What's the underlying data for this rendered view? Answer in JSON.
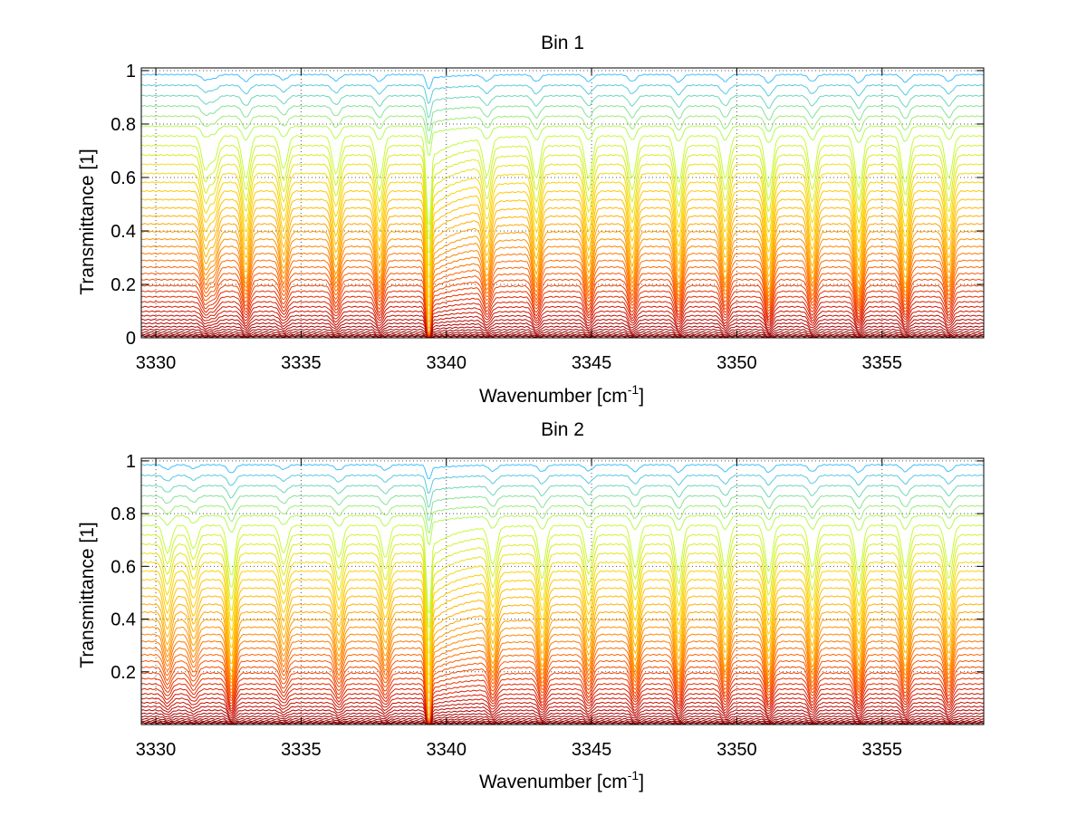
{
  "chart_data": [
    {
      "type": "line",
      "title": "Bin 1",
      "xlabel": "Wavenumber [cm",
      "xlabel_sup": "-1",
      "xlabel_end": "]",
      "ylabel": "Transmittance [1]",
      "xlim": [
        3329.5,
        3358.5
      ],
      "ylim": [
        0,
        1.01
      ],
      "xticks": [
        3330,
        3335,
        3340,
        3345,
        3350,
        3355
      ],
      "xtick_labels": [
        "3330",
        "3335",
        "3340",
        "3345",
        "3350",
        "3355"
      ],
      "yticks": [
        0,
        0.2,
        0.4,
        0.6,
        0.8,
        1
      ],
      "ytick_labels": [
        "0",
        "0.2",
        "0.4",
        "0.6",
        "0.8",
        "1"
      ],
      "grid": "dotted",
      "colormap": [
        "#7f0000",
        "#b00000",
        "#e02000",
        "#ff6000",
        "#ffa000",
        "#ffd000",
        "#c0ff40",
        "#40c0ff"
      ],
      "series_count": 40,
      "line_centers": [
        3331.7,
        3332.0,
        3333.1,
        3334.4,
        3336.2,
        3337.7,
        3339.4,
        3341.4,
        3343.1,
        3344.9,
        3346.4,
        3348.0,
        3349.6,
        3351.1,
        3352.6,
        3354.2,
        3355.8,
        3357.3
      ],
      "line_depths": [
        0.35,
        0.25,
        0.45,
        0.35,
        0.4,
        0.45,
        1.0,
        0.4,
        0.45,
        0.45,
        0.45,
        0.5,
        0.45,
        0.55,
        0.45,
        0.55,
        0.5,
        0.45
      ],
      "continuum_top": 0.985,
      "continuum_bottom": 0.005
    },
    {
      "type": "line",
      "title": "Bin 2",
      "xlabel": "Wavenumber [cm",
      "xlabel_sup": "-1",
      "xlabel_end": "]",
      "ylabel": "Transmittance [1]",
      "xlim": [
        3329.5,
        3358.5
      ],
      "ylim": [
        0,
        1.01
      ],
      "xticks": [
        3330,
        3335,
        3340,
        3345,
        3350,
        3355
      ],
      "xtick_labels": [
        "3330",
        "3335",
        "3340",
        "3345",
        "3350",
        "3355"
      ],
      "yticks": [
        0.2,
        0.4,
        0.6,
        0.8,
        1
      ],
      "ytick_labels": [
        "0.2",
        "0.4",
        "0.6",
        "0.8",
        "1"
      ],
      "grid": "dotted",
      "colormap": [
        "#7f0000",
        "#b00000",
        "#e02000",
        "#ff6000",
        "#ffa000",
        "#ffd000",
        "#c0ff40",
        "#40c0ff"
      ],
      "series_count": 40,
      "line_centers": [
        3330.4,
        3331.3,
        3332.6,
        3334.4,
        3336.3,
        3337.9,
        3339.4,
        3341.6,
        3343.3,
        3344.9,
        3346.5,
        3348.0,
        3349.6,
        3351.1,
        3352.6,
        3354.2,
        3355.8,
        3357.3
      ],
      "line_depths": [
        0.3,
        0.25,
        0.55,
        0.3,
        0.35,
        0.35,
        1.0,
        0.4,
        0.45,
        0.4,
        0.45,
        0.5,
        0.45,
        0.5,
        0.45,
        0.5,
        0.45,
        0.45
      ],
      "continuum_top": 0.985,
      "continuum_bottom": 0.005
    }
  ]
}
